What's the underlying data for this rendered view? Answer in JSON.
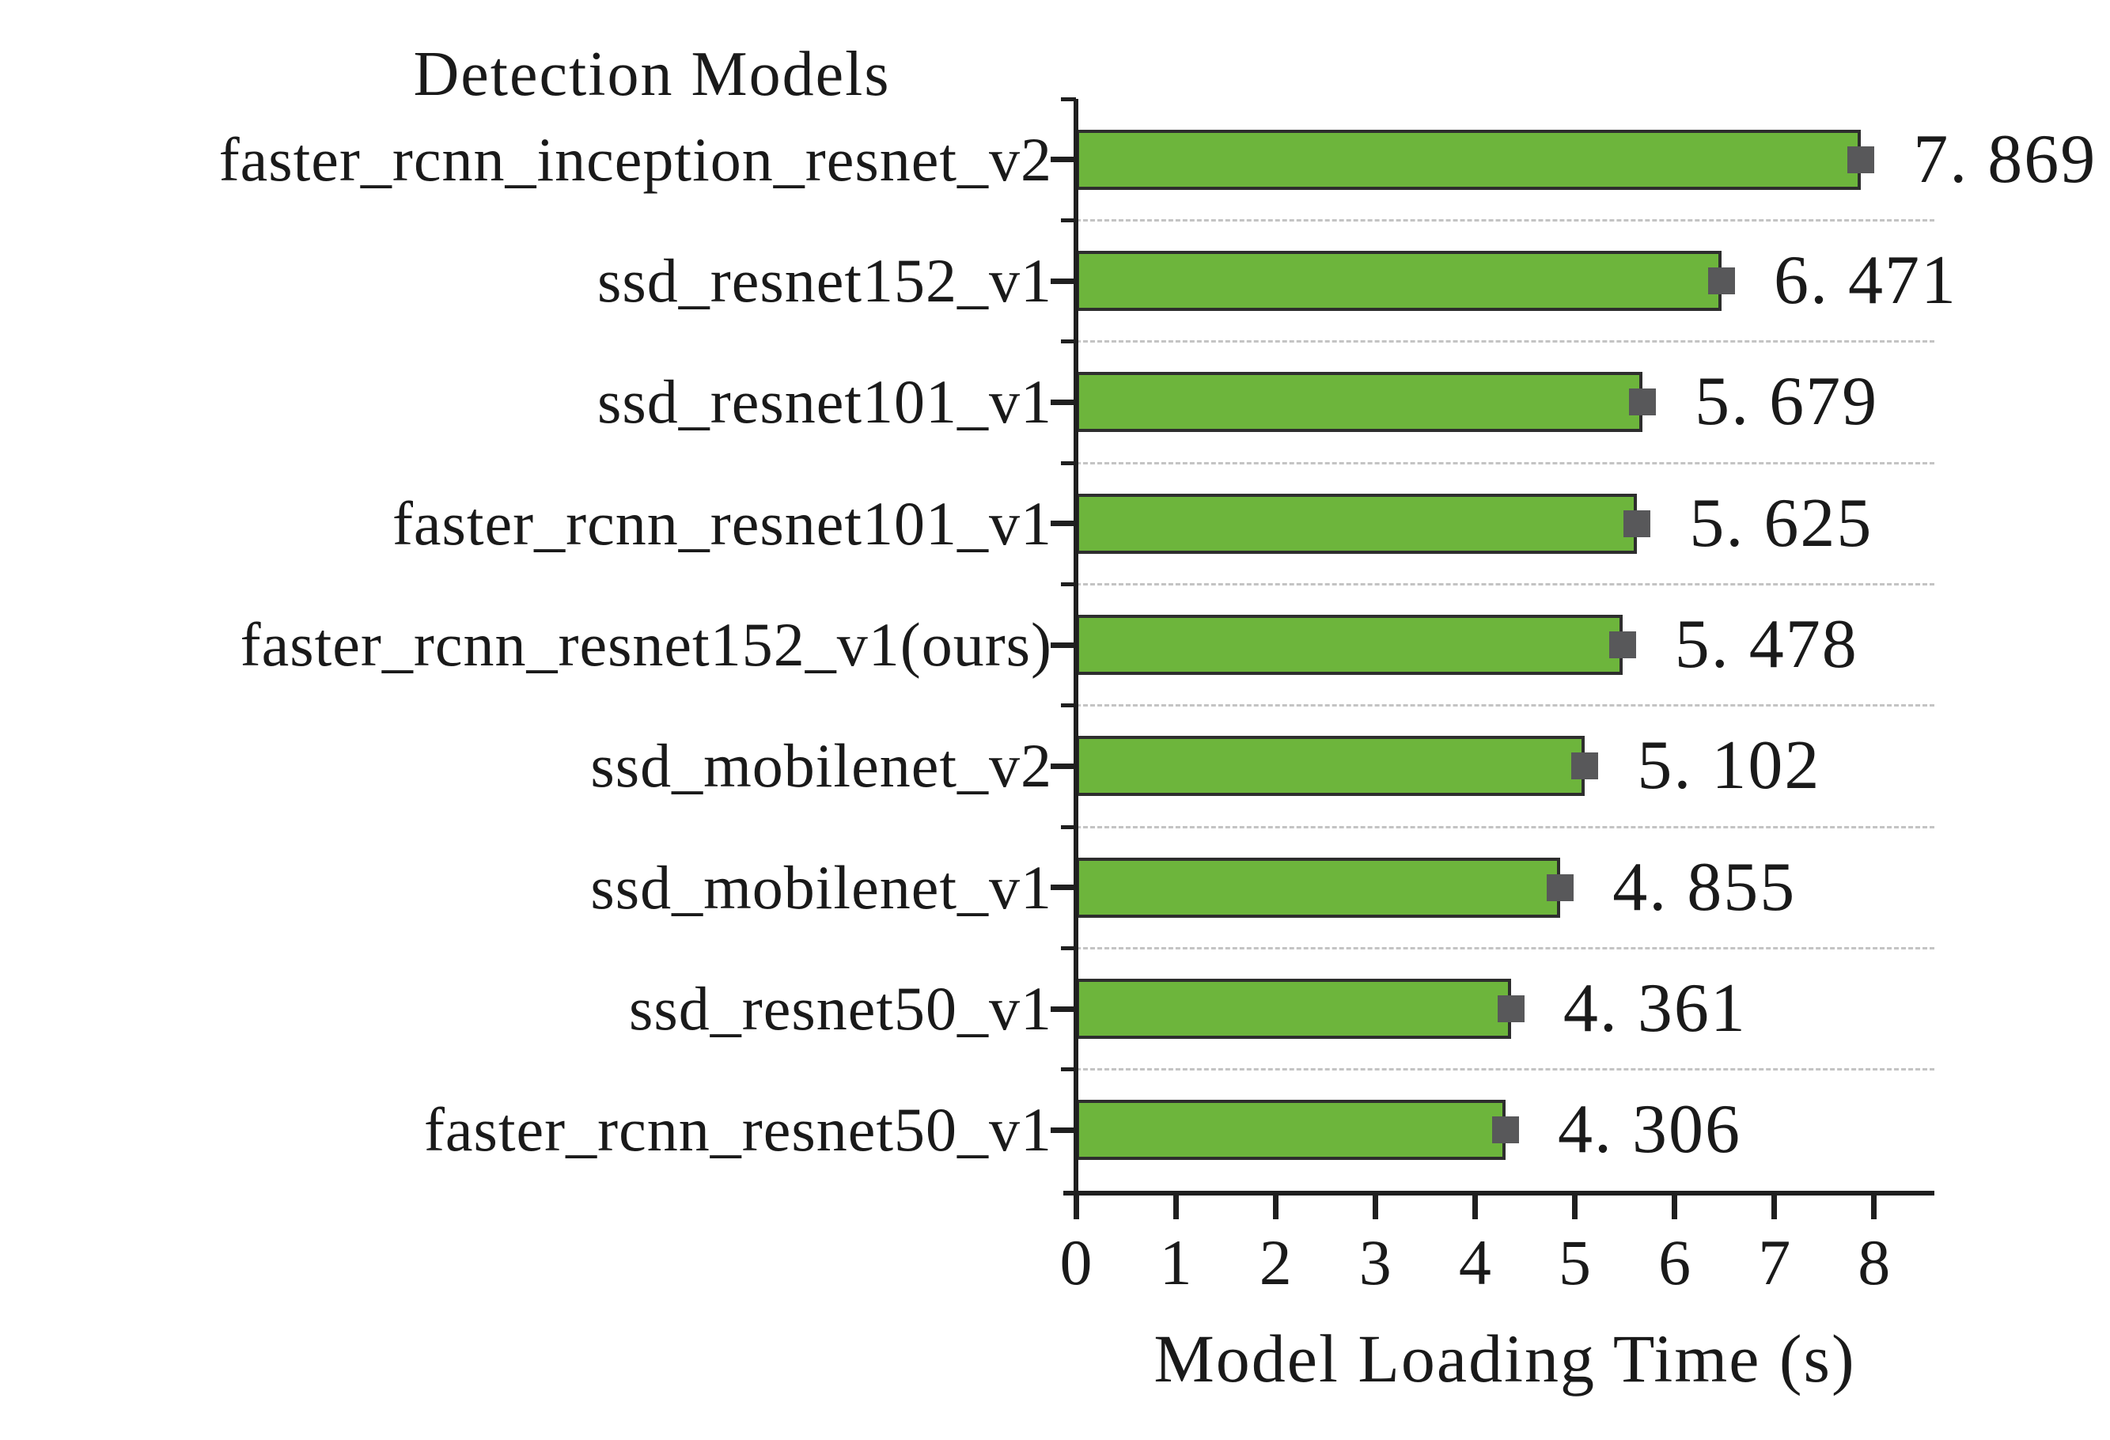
{
  "chart_data": {
    "type": "bar",
    "orientation": "horizontal",
    "title": "Detection Models",
    "xlabel": "Model Loading Time (s)",
    "categories": [
      "faster_rcnn_inception_resnet_v2",
      "ssd_resnet152_v1",
      "ssd_resnet101_v1",
      "faster_rcnn_resnet101_v1",
      "faster_rcnn_resnet152_v1(ours)",
      "ssd_mobilenet_v2",
      "ssd_mobilenet_v1",
      "ssd_resnet50_v1",
      "faster_rcnn_resnet50_v1"
    ],
    "values": [
      7.869,
      6.471,
      5.679,
      5.625,
      5.478,
      5.102,
      4.855,
      4.361,
      4.306
    ],
    "value_labels": [
      "7. 869",
      "6. 471",
      "5. 679",
      "5. 625",
      "5. 478",
      "5. 102",
      "4. 855",
      "4. 361",
      "4. 306"
    ],
    "x_ticks": [
      0,
      1,
      2,
      3,
      4,
      5,
      6,
      7,
      8
    ],
    "xlim": [
      0,
      8.6
    ],
    "grid": "dashed horizontal separator lines between category slots",
    "legend": "none",
    "bar_color": "#6db53c",
    "bar_edge_color": "#2e2e2e",
    "marker_color": "#58585a",
    "marker_shape": "square",
    "axis_color": "#1f1f1f",
    "gridline_color": "#c4c4c4",
    "text_color": "#1a1a1a",
    "background_color": "#ffffff"
  }
}
